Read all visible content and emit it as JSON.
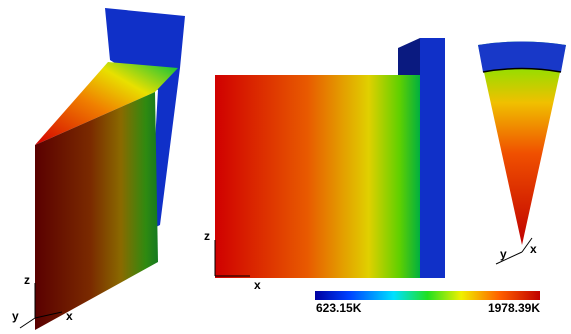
{
  "views": [
    {
      "axes": [
        "z",
        "y",
        "x"
      ]
    },
    {
      "axes": [
        "z",
        "x"
      ]
    },
    {
      "axes": [
        "y",
        "x"
      ]
    }
  ],
  "colorbar": {
    "min_label": "623.15K",
    "max_label": "1978.39K"
  }
}
